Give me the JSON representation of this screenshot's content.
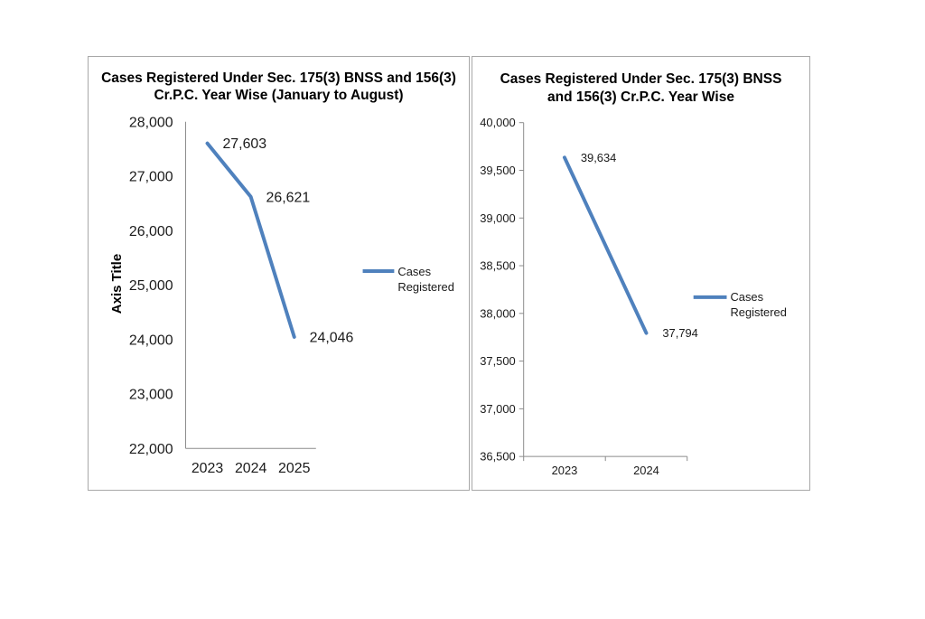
{
  "colors": {
    "line": "#4F81BD",
    "axis": "#8C8C8C",
    "text": "#1A1A1A",
    "panel_border": "#A8A8A8",
    "background": "#FFFFFF"
  },
  "chart_data": [
    {
      "type": "line",
      "title": "Cases Registered Under Sec. 175(3) BNSS and 156(3) Cr.P.C. Year Wise (January to August)",
      "title_lines": [
        "Cases Registered Under Sec. 175(3) BNSS and 156(3)",
        "Cr.P.C. Year Wise (January to August)"
      ],
      "categories": [
        "2023",
        "2024",
        "2025"
      ],
      "series": [
        {
          "name": "Cases Registered",
          "values": [
            27603,
            26621,
            24046
          ]
        }
      ],
      "data_labels": [
        "27,603",
        "26,621",
        "24,046"
      ],
      "xlabel": "",
      "ylabel": "Axis Title",
      "ylim": [
        22000,
        28000
      ],
      "ytick_step": 1000,
      "ytick_labels": [
        "22,000",
        "23,000",
        "24,000",
        "25,000",
        "26,000",
        "27,000",
        "28,000"
      ],
      "legend_lines": [
        "Cases",
        "Registered"
      ],
      "legend_position": "right",
      "grid": false,
      "line_color": "#4F81BD"
    },
    {
      "type": "line",
      "title": "Cases Registered Under Sec. 175(3) BNSS and 156(3) Cr.P.C. Year Wise",
      "title_lines": [
        "Cases Registered Under Sec. 175(3) BNSS",
        "and 156(3) Cr.P.C. Year Wise"
      ],
      "categories": [
        "2023",
        "2024"
      ],
      "series": [
        {
          "name": "Cases Registered",
          "values": [
            39634,
            37794
          ]
        }
      ],
      "data_labels": [
        "39,634",
        "37,794"
      ],
      "xlabel": "",
      "ylabel": "",
      "ylim": [
        36500,
        40000
      ],
      "ytick_step": 500,
      "ytick_labels": [
        "36,500",
        "37,000",
        "37,500",
        "38,000",
        "38,500",
        "39,000",
        "39,500",
        "40,000"
      ],
      "legend_lines": [
        "Cases",
        "Registered"
      ],
      "legend_position": "right",
      "grid": false,
      "line_color": "#4F81BD"
    }
  ]
}
